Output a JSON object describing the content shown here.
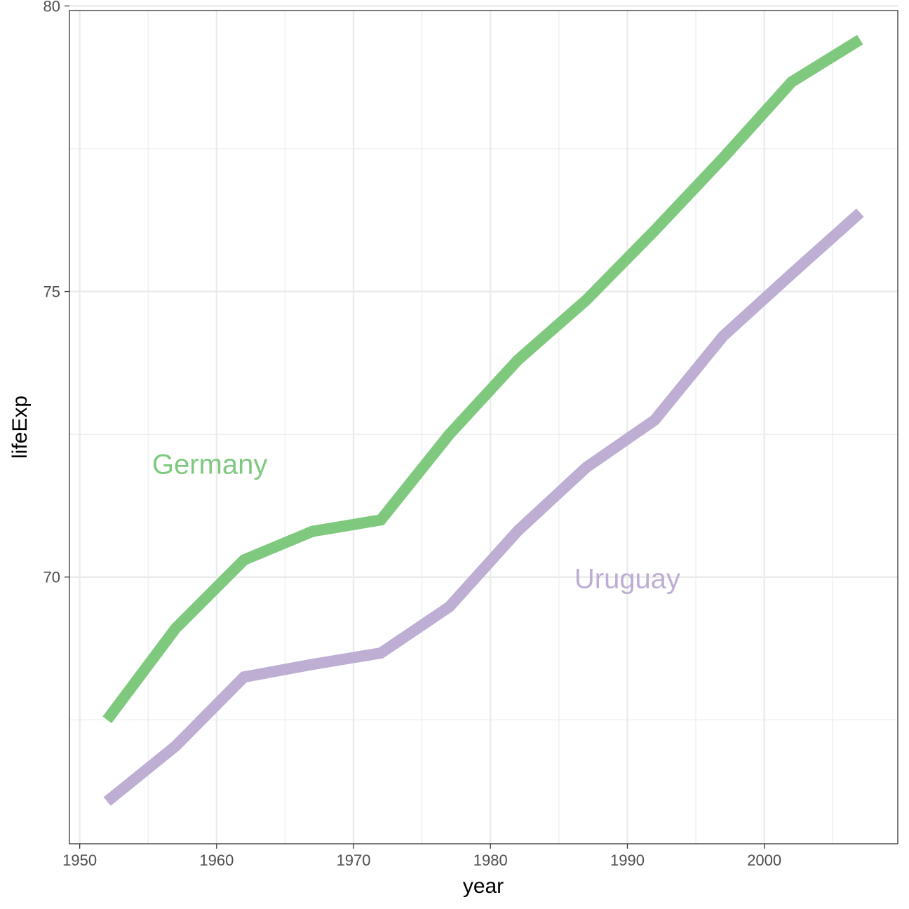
{
  "chart_data": {
    "type": "line",
    "title": "",
    "xlabel": "year",
    "ylabel": "lifeExp",
    "xlim": [
      1949.25,
      2009.75
    ],
    "ylim": [
      65.33,
      79.92
    ],
    "x_ticks": [
      1950,
      1960,
      1970,
      1980,
      1990,
      2000
    ],
    "y_ticks": [
      70,
      75,
      80
    ],
    "grid": true,
    "legend": "none (direct labels)",
    "x": [
      1952,
      1957,
      1962,
      1967,
      1972,
      1977,
      1982,
      1987,
      1992,
      1997,
      2002,
      2007
    ],
    "series": [
      {
        "name": "Germany",
        "color": "#7fc97f",
        "values": [
          67.5,
          69.1,
          70.3,
          70.8,
          71.0,
          72.5,
          73.8,
          74.85,
          76.07,
          77.34,
          78.67,
          79.41
        ],
        "label_at": [
          1959.5,
          71.98
        ]
      },
      {
        "name": "Uruguay",
        "color": "#beaed4",
        "values": [
          66.07,
          67.04,
          68.25,
          68.47,
          68.67,
          69.48,
          70.81,
          71.92,
          72.75,
          74.22,
          75.31,
          76.38
        ],
        "label_at": [
          1990,
          69.98
        ]
      }
    ]
  }
}
